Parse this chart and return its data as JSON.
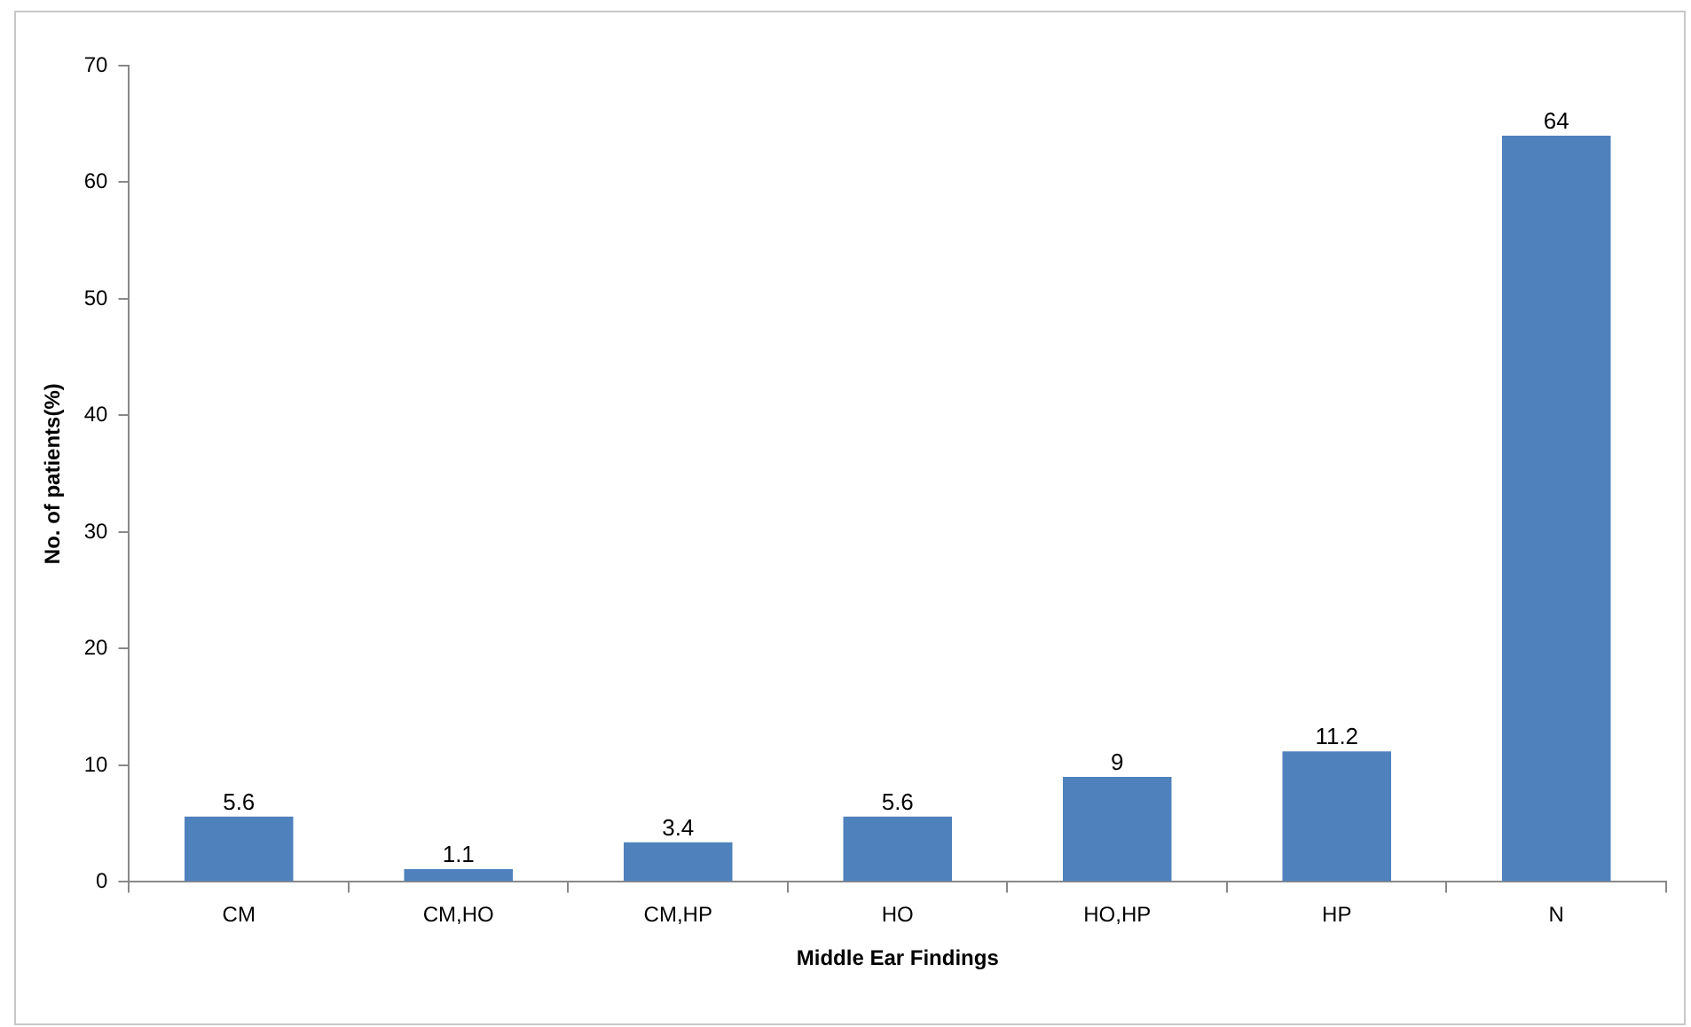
{
  "chart_data": {
    "type": "bar",
    "xlabel": "Middle Ear Findings",
    "ylabel": "No. of patients(%)",
    "categories": [
      "CM",
      "CM,HO",
      "CM,HP",
      "HO",
      "HO,HP",
      "HP",
      "N"
    ],
    "values": [
      5.6,
      1.1,
      3.4,
      5.6,
      9,
      11.2,
      64
    ],
    "color": "#4f81bd",
    "ylim": [
      0,
      70
    ],
    "yticks": [
      0,
      10,
      20,
      30,
      40,
      50,
      60,
      70
    ],
    "grid": false,
    "legend": false,
    "data_labels": true
  }
}
